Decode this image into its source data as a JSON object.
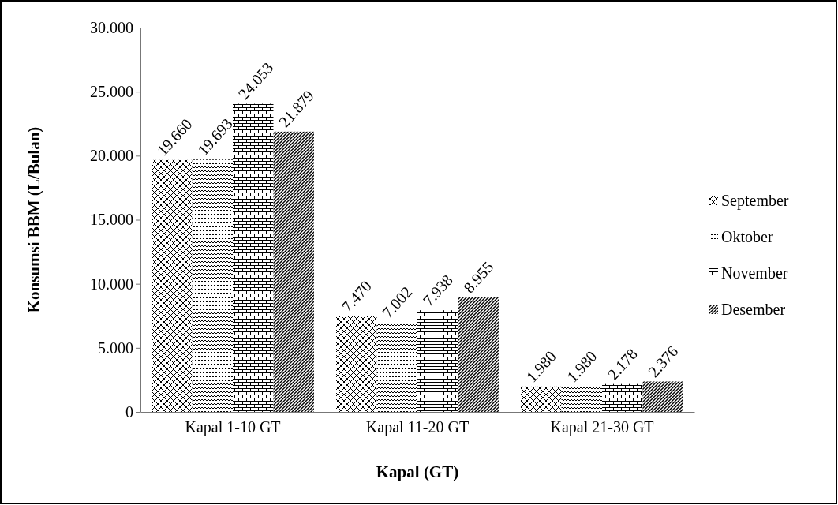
{
  "chart_data": {
    "type": "bar",
    "xlabel": "Kapal (GT)",
    "ylabel": "Konsumsi BBM (L/Bulan)",
    "categories": [
      "Kapal 1-10 GT",
      "Kapal 11-20 GT",
      "Kapal 21-30 GT"
    ],
    "series": [
      {
        "name": "September",
        "color": "#000000",
        "values": [
          19660,
          7470,
          1980
        ],
        "value_labels": [
          "19.660",
          "7.470",
          "1.980"
        ]
      },
      {
        "name": "Oktober",
        "color": "#000000",
        "values": [
          19693,
          7002,
          1980
        ],
        "value_labels": [
          "19.693",
          "7.002",
          "1.980"
        ]
      },
      {
        "name": "November",
        "color": "#000000",
        "values": [
          24053,
          7938,
          2178
        ],
        "value_labels": [
          "24.053",
          "7.938",
          "2.178"
        ]
      },
      {
        "name": "Desember",
        "color": "#000000",
        "values": [
          21879,
          8955,
          2376
        ],
        "value_labels": [
          "21.879",
          "8.955",
          "2.376"
        ]
      }
    ],
    "ylim": [
      0,
      30000
    ],
    "yticks": [
      0,
      {
        "value": 5000,
        "label": "5.000"
      },
      {
        "value": 10000,
        "label": "10.000"
      },
      {
        "value": 15000,
        "label": "15.000"
      },
      {
        "value": 20000,
        "label": "20.000"
      },
      {
        "value": 25000,
        "label": "25.000"
      },
      {
        "value": 30000,
        "label": "30.000"
      }
    ],
    "grid": false,
    "legend": "right"
  }
}
